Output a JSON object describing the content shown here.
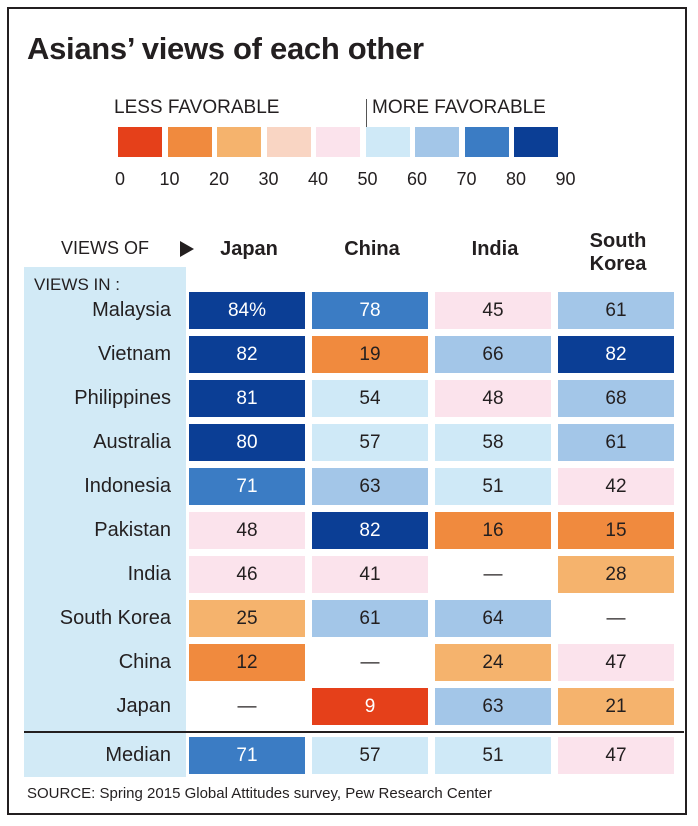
{
  "title": "Asians’ views of each other",
  "legend": {
    "less_label": "LESS FAVORABLE",
    "more_label": "MORE FAVORABLE",
    "ticks": [
      "0",
      "10",
      "20",
      "30",
      "40",
      "50",
      "60",
      "70",
      "80",
      "90"
    ],
    "colors": [
      "#e5401a",
      "#f08a3e",
      "#f5b36d",
      "#f9d5c3",
      "#fbe3ec",
      "#cfe9f7",
      "#a3c6e8",
      "#3b7cc4",
      "#0b3e95"
    ]
  },
  "chart_data": {
    "type": "table",
    "title": "Asians’ views of each other",
    "views_of_label": "VIEWS OF",
    "views_in_label": "VIEWS IN :",
    "columns": [
      {
        "label": "Japan"
      },
      {
        "label": "China"
      },
      {
        "label": "India"
      },
      {
        "label": "South Korea",
        "line1": "South",
        "line2": "Korea"
      }
    ],
    "rows": [
      {
        "label": "Malaysia",
        "values": [
          84,
          78,
          45,
          61
        ],
        "display": [
          "84%",
          "78",
          "45",
          "61"
        ]
      },
      {
        "label": "Vietnam",
        "values": [
          82,
          19,
          66,
          82
        ],
        "display": [
          "82",
          "19",
          "66",
          "82"
        ]
      },
      {
        "label": "Philippines",
        "values": [
          81,
          54,
          48,
          68
        ],
        "display": [
          "81",
          "54",
          "48",
          "68"
        ]
      },
      {
        "label": "Australia",
        "values": [
          80,
          57,
          58,
          61
        ],
        "display": [
          "80",
          "57",
          "58",
          "61"
        ]
      },
      {
        "label": "Indonesia",
        "values": [
          71,
          63,
          51,
          42
        ],
        "display": [
          "71",
          "63",
          "51",
          "42"
        ]
      },
      {
        "label": "Pakistan",
        "values": [
          48,
          82,
          16,
          15
        ],
        "display": [
          "48",
          "82",
          "16",
          "15"
        ]
      },
      {
        "label": "India",
        "values": [
          46,
          41,
          null,
          28
        ],
        "display": [
          "46",
          "41",
          "—",
          "28"
        ]
      },
      {
        "label": "South Korea",
        "values": [
          25,
          61,
          64,
          null
        ],
        "display": [
          "25",
          "61",
          "64",
          "—"
        ]
      },
      {
        "label": "China",
        "values": [
          12,
          null,
          24,
          47
        ],
        "display": [
          "12",
          "—",
          "24",
          "47"
        ]
      },
      {
        "label": "Japan",
        "values": [
          null,
          9,
          63,
          21
        ],
        "display": [
          "—",
          "9",
          "63",
          "21"
        ]
      }
    ],
    "median": {
      "label": "Median",
      "values": [
        71,
        57,
        51,
        47
      ],
      "display": [
        "71",
        "57",
        "51",
        "47"
      ]
    },
    "scale": [
      0,
      90
    ]
  },
  "source": "SOURCE: Spring 2015 Global Attitudes survey, Pew Research Center"
}
